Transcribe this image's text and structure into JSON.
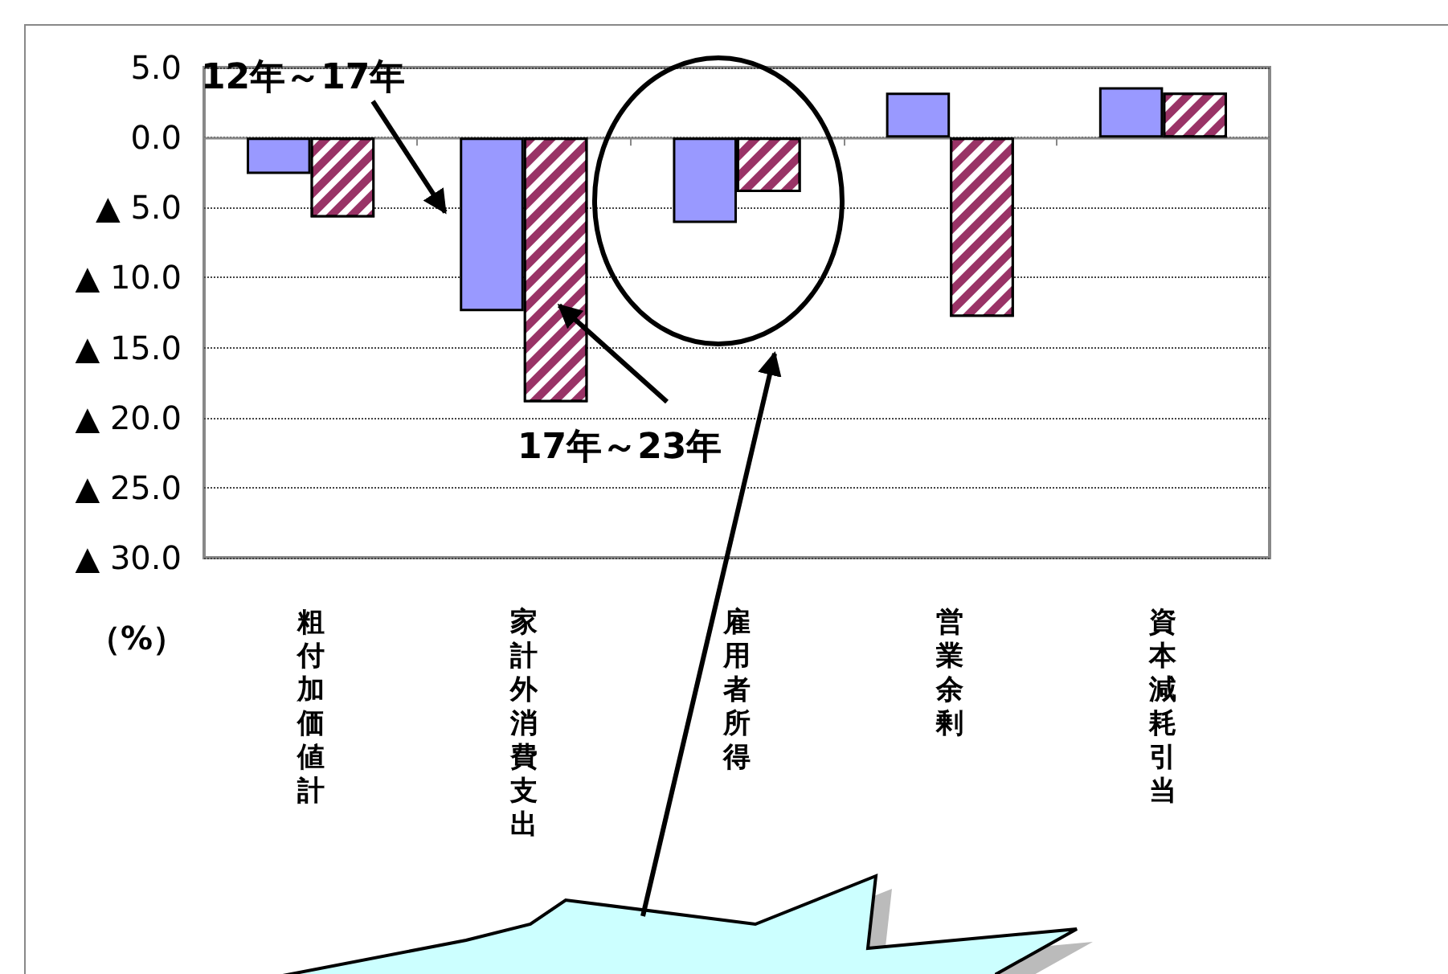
{
  "chart_data": {
    "type": "bar",
    "ylabel": "（%）",
    "categories": [
      "粗付加価値計",
      "家計外消費支出",
      "雇用者所得",
      "営業余剰",
      "資本減耗引当"
    ],
    "series": [
      {
        "name": "12年～17年",
        "color": "#9999ff",
        "values": [
          -2.6,
          -12.4,
          -6.1,
          3.2,
          3.6
        ]
      },
      {
        "name": "17年～23年",
        "color": "#993366",
        "values": [
          -5.7,
          -18.9,
          -3.9,
          -12.8,
          3.2
        ]
      }
    ],
    "ylim": [
      -30,
      5
    ],
    "yticks": [
      {
        "value": -30,
        "label": "▲ 30.0"
      },
      {
        "value": -25,
        "label": "▲ 25.0"
      },
      {
        "value": -20,
        "label": "▲ 20.0"
      },
      {
        "value": -15,
        "label": "▲ 15.0"
      },
      {
        "value": -10,
        "label": "▲ 10.0"
      },
      {
        "value": -5,
        "label": "▲ 5.0"
      },
      {
        "value": 0,
        "label": "0.0"
      },
      {
        "value": 5,
        "label": "5.0"
      }
    ],
    "grid": "y"
  }
}
